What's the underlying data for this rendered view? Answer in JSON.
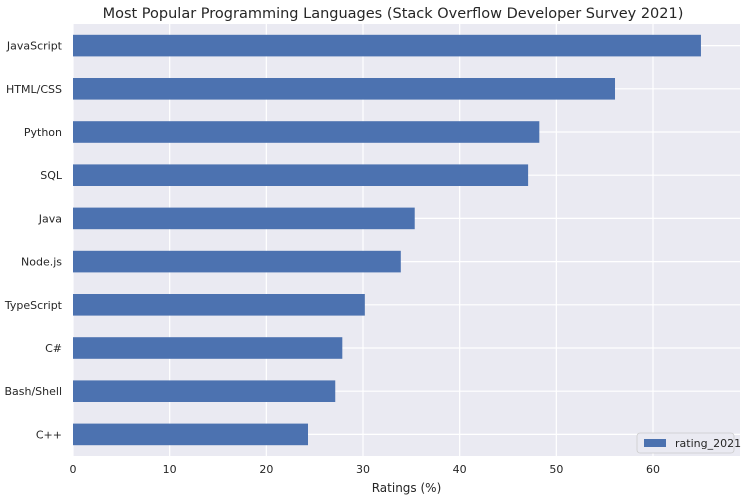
{
  "chart_data": {
    "type": "bar",
    "orientation": "horizontal",
    "title": "Most Popular Programming Languages (Stack Overflow Developer Survey 2021)",
    "xlabel": "Ratings (%)",
    "ylabel": "",
    "xlim": [
      0,
      69
    ],
    "xticks": [
      0,
      10,
      20,
      30,
      40,
      50,
      60
    ],
    "grid": true,
    "legend_placement": "bottom-right",
    "categories": [
      "JavaScript",
      "HTML/CSS",
      "Python",
      "SQL",
      "Java",
      "Node.js",
      "TypeScript",
      "C#",
      "Bash/Shell",
      "C++"
    ],
    "series": [
      {
        "name": "rating_2021",
        "color": "#4c72b0",
        "values": [
          64.96,
          56.07,
          48.24,
          47.08,
          35.35,
          33.91,
          30.19,
          27.86,
          27.13,
          24.31
        ]
      }
    ]
  },
  "colors": {
    "plot_background": "#eaeaf2",
    "grid": "#ffffff",
    "bar": "#4c72b0",
    "text": "#262626"
  }
}
